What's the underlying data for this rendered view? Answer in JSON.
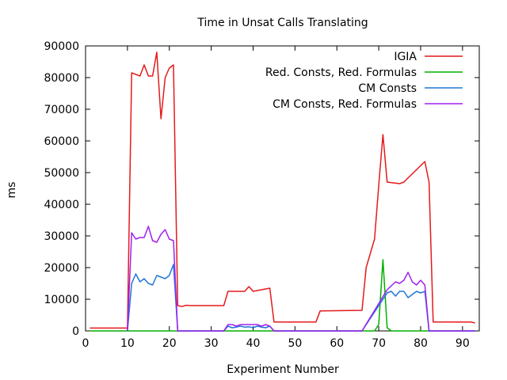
{
  "chart_data": {
    "type": "line",
    "title": "Time in Unsat Calls Translating",
    "xlabel": "Experiment Number",
    "ylabel": "ms",
    "xlim": [
      0,
      94
    ],
    "ylim": [
      0,
      90000
    ],
    "x_ticks": [
      0,
      10,
      20,
      30,
      40,
      50,
      60,
      70,
      80,
      90
    ],
    "y_ticks": [
      0,
      10000,
      20000,
      30000,
      40000,
      50000,
      60000,
      70000,
      80000,
      90000
    ],
    "grid": false,
    "legend_position": "top-right",
    "series": [
      {
        "name": "IGIA",
        "color": "#e41a1c",
        "points": [
          [
            1,
            900
          ],
          [
            10,
            900
          ],
          [
            11,
            81500
          ],
          [
            13,
            80500
          ],
          [
            14,
            84000
          ],
          [
            15,
            80500
          ],
          [
            16,
            80500
          ],
          [
            17,
            88000
          ],
          [
            18,
            67000
          ],
          [
            19,
            80000
          ],
          [
            20,
            83000
          ],
          [
            21,
            84000
          ],
          [
            22,
            8000
          ],
          [
            23,
            7700
          ],
          [
            24,
            8100
          ],
          [
            25,
            8000
          ],
          [
            33,
            8000
          ],
          [
            34,
            12500
          ],
          [
            38,
            12500
          ],
          [
            39,
            14000
          ],
          [
            40,
            12500
          ],
          [
            44,
            13500
          ],
          [
            45,
            2800
          ],
          [
            55,
            2800
          ],
          [
            56,
            6300
          ],
          [
            66,
            6500
          ],
          [
            67,
            20000
          ],
          [
            69,
            29000
          ],
          [
            70,
            46000
          ],
          [
            71,
            62000
          ],
          [
            72,
            47000
          ],
          [
            75,
            46500
          ],
          [
            76,
            47000
          ],
          [
            81,
            53500
          ],
          [
            82,
            47000
          ],
          [
            83,
            2800
          ],
          [
            92,
            2800
          ],
          [
            93,
            2500
          ]
        ]
      },
      {
        "name": "Red. Consts, Red. Formulas",
        "color": "#00b000",
        "points": [
          [
            1,
            0
          ],
          [
            69,
            0
          ],
          [
            70,
            2000
          ],
          [
            71,
            22500
          ],
          [
            72,
            1000
          ],
          [
            73,
            0
          ],
          [
            93,
            0
          ]
        ]
      },
      {
        "name": "CM Consts",
        "color": "#1f77d4",
        "points": [
          [
            10,
            0
          ],
          [
            11,
            15000
          ],
          [
            12,
            18000
          ],
          [
            13,
            15500
          ],
          [
            14,
            16500
          ],
          [
            15,
            15000
          ],
          [
            16,
            14500
          ],
          [
            17,
            17500
          ],
          [
            18,
            17000
          ],
          [
            19,
            16500
          ],
          [
            20,
            17500
          ],
          [
            21,
            21000
          ],
          [
            22,
            0
          ],
          [
            33,
            0
          ],
          [
            34,
            1500
          ],
          [
            35,
            1000
          ],
          [
            36,
            1200
          ],
          [
            37,
            1500
          ],
          [
            38,
            1200
          ],
          [
            39,
            1300
          ],
          [
            40,
            1000
          ],
          [
            41,
            1500
          ],
          [
            42,
            1200
          ],
          [
            43,
            1000
          ],
          [
            44,
            1500
          ],
          [
            45,
            0
          ],
          [
            66,
            0
          ],
          [
            72,
            12000
          ],
          [
            73,
            12500
          ],
          [
            74,
            11000
          ],
          [
            75,
            12500
          ],
          [
            76,
            12500
          ],
          [
            77,
            10500
          ],
          [
            78,
            11500
          ],
          [
            79,
            12500
          ],
          [
            80,
            12000
          ],
          [
            81,
            12500
          ],
          [
            82,
            0
          ],
          [
            93,
            0
          ]
        ]
      },
      {
        "name": "CM Consts, Red. Formulas",
        "color": "#a020f0",
        "points": [
          [
            10,
            0
          ],
          [
            11,
            31000
          ],
          [
            12,
            29000
          ],
          [
            13,
            29500
          ],
          [
            14,
            29500
          ],
          [
            15,
            33000
          ],
          [
            16,
            28500
          ],
          [
            17,
            28000
          ],
          [
            18,
            30500
          ],
          [
            19,
            32000
          ],
          [
            20,
            29000
          ],
          [
            21,
            28500
          ],
          [
            22,
            0
          ],
          [
            33,
            0
          ],
          [
            34,
            2000
          ],
          [
            35,
            2000
          ],
          [
            36,
            1500
          ],
          [
            37,
            2000
          ],
          [
            38,
            2000
          ],
          [
            39,
            2000
          ],
          [
            40,
            2000
          ],
          [
            41,
            2000
          ],
          [
            42,
            1500
          ],
          [
            43,
            2000
          ],
          [
            44,
            1500
          ],
          [
            45,
            0
          ],
          [
            66,
            0
          ],
          [
            72,
            13000
          ],
          [
            74,
            15500
          ],
          [
            75,
            15000
          ],
          [
            76,
            16000
          ],
          [
            77,
            18500
          ],
          [
            78,
            15500
          ],
          [
            79,
            14500
          ],
          [
            80,
            16000
          ],
          [
            81,
            14500
          ],
          [
            82,
            0
          ],
          [
            93,
            0
          ]
        ]
      }
    ]
  }
}
